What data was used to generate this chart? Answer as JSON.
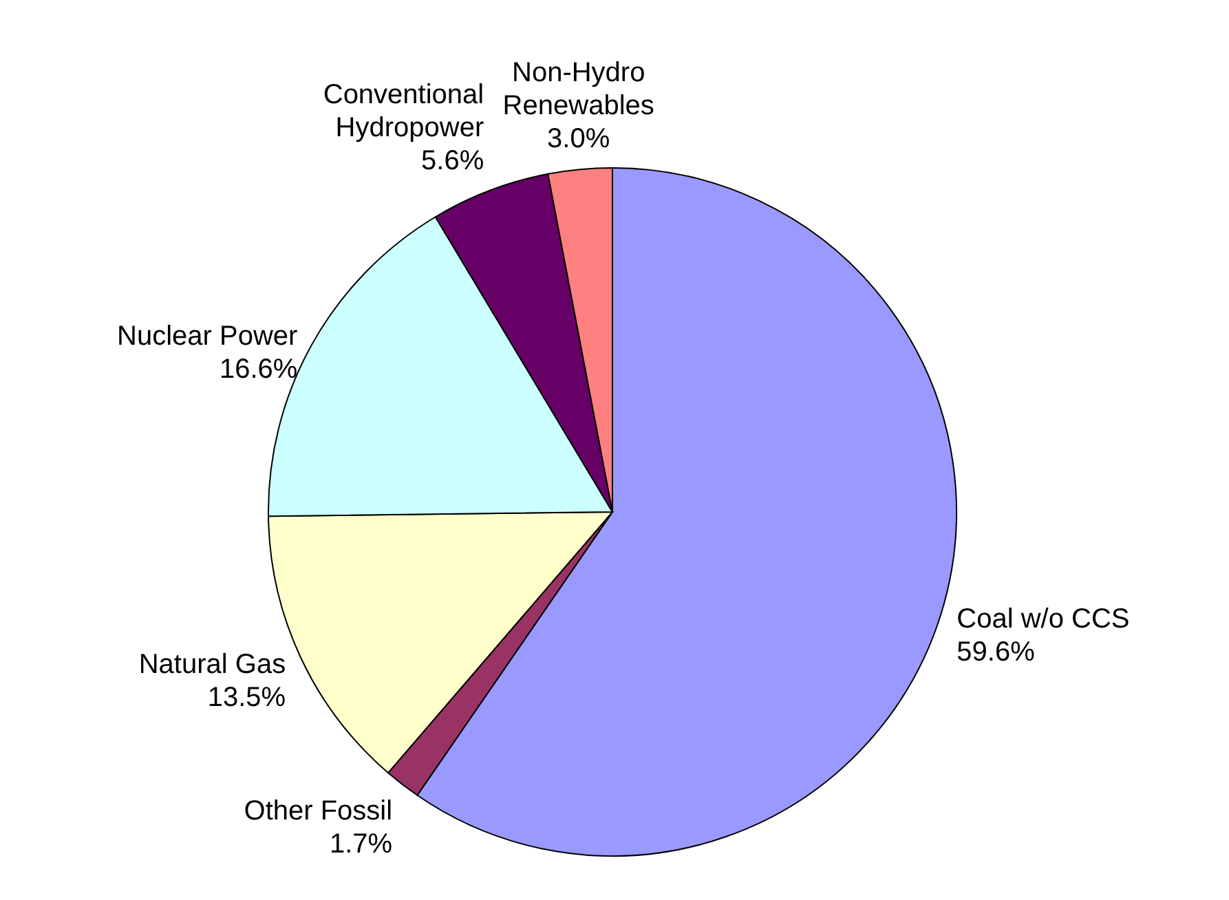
{
  "chart_data": {
    "type": "pie",
    "categories": [
      "Coal w/o CCS",
      "Other Fossil",
      "Natural Gas",
      "Nuclear Power",
      "Conventional Hydropower",
      "Non-Hydro Renewables"
    ],
    "values": [
      59.6,
      1.7,
      13.5,
      16.6,
      5.6,
      3.0
    ],
    "value_labels": [
      "59.6%",
      "1.7%",
      "13.5%",
      "16.6%",
      "5.6%",
      "3.0%"
    ],
    "colors": [
      "#9999ff",
      "#993366",
      "#ffffcc",
      "#ccffff",
      "#660066",
      "#ff8080"
    ]
  }
}
